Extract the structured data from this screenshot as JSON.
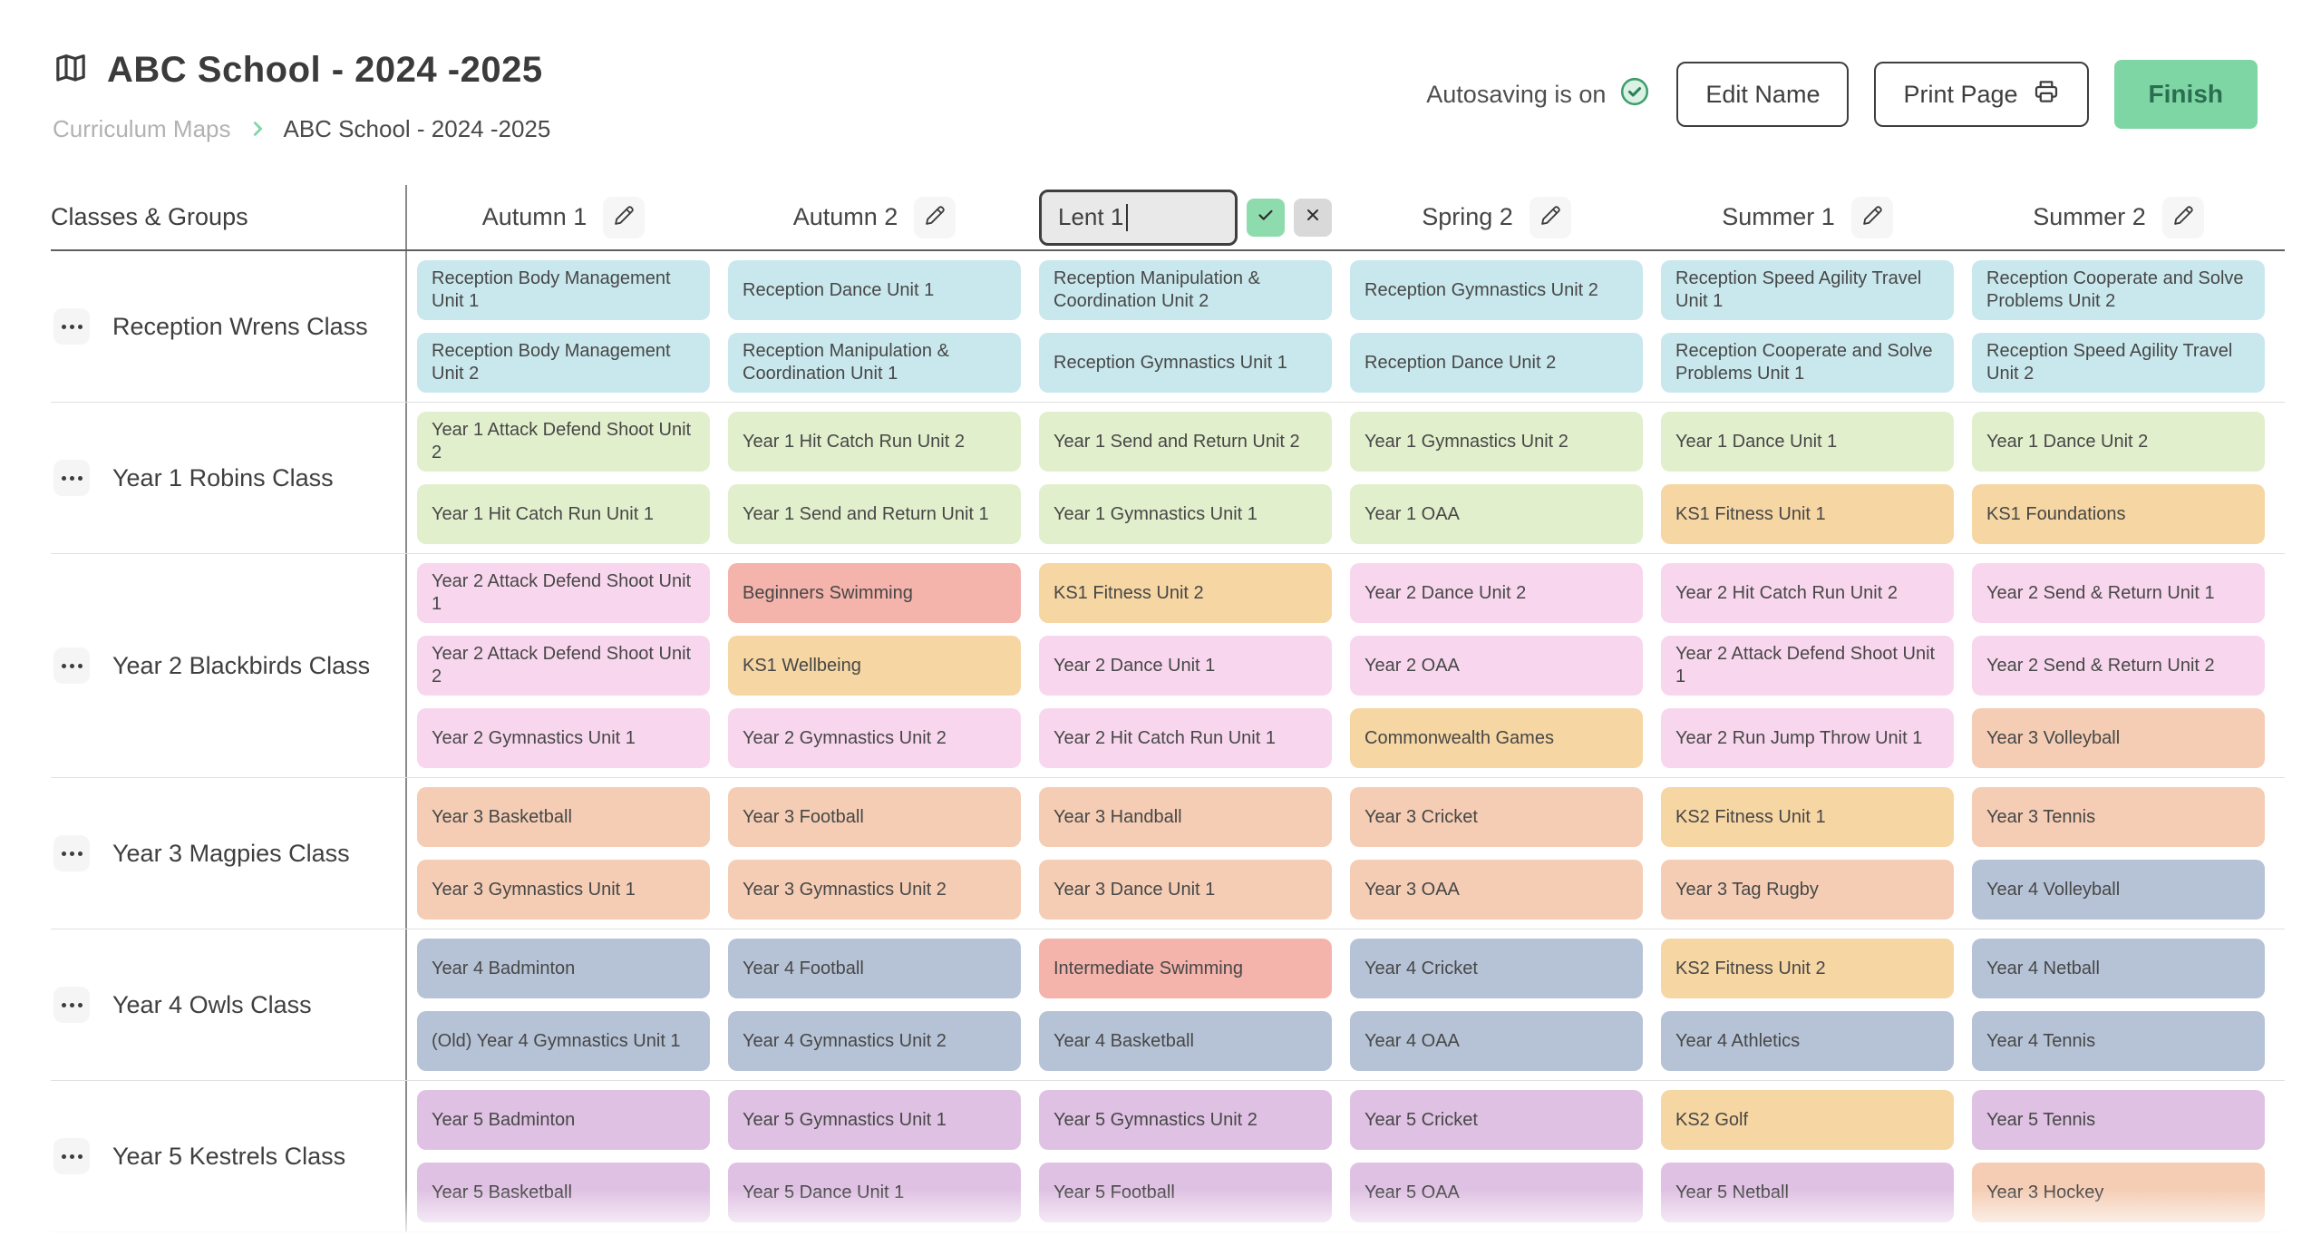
{
  "header": {
    "title": "ABC School - 2024 -2025",
    "breadcrumb": {
      "parent": "Curriculum Maps",
      "current": "ABC School - 2024 -2025"
    },
    "autosave_label": "Autosaving is on",
    "buttons": {
      "edit_name": "Edit Name",
      "print_page": "Print Page",
      "finish": "Finish"
    }
  },
  "colors": {
    "accent_green": "#7fd6a5",
    "finish_text": "#2a6e4f",
    "autosave_check": "#3f9d6d",
    "confirm_btn": "#8edcae",
    "cancel_btn": "#d9d9d9"
  },
  "palette": {
    "cyan": "#c9e8ed",
    "green": "#e2efcc",
    "pink": "#f8d7ee",
    "peach": "#f4cdb4",
    "steel": "#b6c3d6",
    "lilac": "#dfc1e3",
    "orange": "#f6d6a3",
    "salmon": "#f4b3ab"
  },
  "table": {
    "classes_header": "Classes & Groups",
    "edit_input_value": "Lent 1",
    "columns": [
      {
        "label": "Autumn 1",
        "editing": false
      },
      {
        "label": "Autumn 2",
        "editing": false
      },
      {
        "label": "Lent 1",
        "editing": true
      },
      {
        "label": "Spring 2",
        "editing": false
      },
      {
        "label": "Summer 1",
        "editing": false
      },
      {
        "label": "Summer 2",
        "editing": false
      }
    ],
    "rows": [
      {
        "class_name": "Reception Wrens Class",
        "color": "cyan",
        "cells": [
          [
            {
              "t": "Reception Body Management Unit 1"
            },
            {
              "t": "Reception Body Management Unit 2"
            }
          ],
          [
            {
              "t": "Reception Dance Unit 1"
            },
            {
              "t": "Reception Manipulation & Coordination Unit 1"
            }
          ],
          [
            {
              "t": "Reception Manipulation & Coordination Unit 2"
            },
            {
              "t": "Reception Gymnastics Unit 1"
            }
          ],
          [
            {
              "t": "Reception Gymnastics Unit 2"
            },
            {
              "t": "Reception Dance Unit 2"
            }
          ],
          [
            {
              "t": "Reception Speed Agility Travel Unit 1"
            },
            {
              "t": "Reception Cooperate and Solve Problems Unit 1"
            }
          ],
          [
            {
              "t": "Reception Cooperate and Solve Problems Unit 2"
            },
            {
              "t": "Reception Speed Agility Travel Unit 2"
            }
          ]
        ]
      },
      {
        "class_name": "Year 1 Robins Class",
        "color": "green",
        "cells": [
          [
            {
              "t": "Year 1 Attack Defend Shoot Unit 2"
            },
            {
              "t": "Year 1 Hit Catch Run Unit 1"
            }
          ],
          [
            {
              "t": "Year 1 Hit Catch Run Unit 2"
            },
            {
              "t": "Year 1 Send and Return Unit 1"
            }
          ],
          [
            {
              "t": "Year 1 Send and Return Unit 2"
            },
            {
              "t": "Year 1 Gymnastics Unit 1"
            }
          ],
          [
            {
              "t": "Year 1 Gymnastics Unit 2"
            },
            {
              "t": "Year 1 OAA"
            }
          ],
          [
            {
              "t": "Year 1 Dance Unit 1"
            },
            {
              "t": "KS1 Fitness Unit 1",
              "c": "orange"
            }
          ],
          [
            {
              "t": "Year 1 Dance Unit 2"
            },
            {
              "t": "KS1 Foundations",
              "c": "orange"
            }
          ]
        ]
      },
      {
        "class_name": "Year 2 Blackbirds Class",
        "color": "pink",
        "cells": [
          [
            {
              "t": "Year 2 Attack Defend Shoot Unit 1"
            },
            {
              "t": "Year 2 Attack Defend Shoot Unit 2"
            },
            {
              "t": "Year 2 Gymnastics Unit 1"
            }
          ],
          [
            {
              "t": "Beginners Swimming",
              "c": "salmon"
            },
            {
              "t": "KS1 Wellbeing",
              "c": "orange"
            },
            {
              "t": "Year 2 Gymnastics Unit 2"
            }
          ],
          [
            {
              "t": "KS1 Fitness Unit 2",
              "c": "orange"
            },
            {
              "t": "Year 2 Dance Unit 1"
            },
            {
              "t": "Year 2 Hit Catch Run Unit 1"
            }
          ],
          [
            {
              "t": "Year 2 Dance Unit 2"
            },
            {
              "t": "Year 2 OAA"
            },
            {
              "t": "Commonwealth Games",
              "c": "orange"
            }
          ],
          [
            {
              "t": "Year 2 Hit Catch Run Unit 2"
            },
            {
              "t": "Year 2 Attack Defend Shoot Unit 1"
            },
            {
              "t": "Year 2 Run Jump Throw Unit 1"
            }
          ],
          [
            {
              "t": "Year 2 Send & Return Unit 1"
            },
            {
              "t": "Year 2 Send & Return Unit 2"
            },
            {
              "t": "Year 3 Volleyball",
              "c": "peach"
            }
          ]
        ]
      },
      {
        "class_name": "Year 3 Magpies Class",
        "color": "peach",
        "cells": [
          [
            {
              "t": "Year 3 Basketball"
            },
            {
              "t": "Year 3 Gymnastics Unit 1"
            }
          ],
          [
            {
              "t": "Year 3 Football"
            },
            {
              "t": "Year 3 Gymnastics Unit 2"
            }
          ],
          [
            {
              "t": "Year 3 Handball"
            },
            {
              "t": "Year 3 Dance Unit 1"
            }
          ],
          [
            {
              "t": "Year 3 Cricket"
            },
            {
              "t": "Year 3 OAA"
            }
          ],
          [
            {
              "t": "KS2 Fitness Unit 1",
              "c": "orange"
            },
            {
              "t": "Year 3 Tag Rugby"
            }
          ],
          [
            {
              "t": "Year 3 Tennis"
            },
            {
              "t": "Year 4 Volleyball",
              "c": "steel"
            }
          ]
        ]
      },
      {
        "class_name": "Year 4 Owls Class",
        "color": "steel",
        "cells": [
          [
            {
              "t": "Year 4 Badminton"
            },
            {
              "t": "(Old) Year 4 Gymnastics Unit 1"
            }
          ],
          [
            {
              "t": "Year 4 Football"
            },
            {
              "t": "Year 4 Gymnastics Unit 2"
            }
          ],
          [
            {
              "t": "Intermediate Swimming",
              "c": "salmon"
            },
            {
              "t": "Year 4 Basketball"
            }
          ],
          [
            {
              "t": "Year 4 Cricket"
            },
            {
              "t": "Year 4 OAA"
            }
          ],
          [
            {
              "t": "KS2 Fitness Unit 2",
              "c": "orange"
            },
            {
              "t": "Year 4 Athletics"
            }
          ],
          [
            {
              "t": "Year 4 Netball"
            },
            {
              "t": "Year 4 Tennis"
            }
          ]
        ]
      },
      {
        "class_name": "Year 5 Kestrels Class",
        "color": "lilac",
        "cells": [
          [
            {
              "t": "Year 5 Badminton"
            },
            {
              "t": "Year 5 Basketball"
            }
          ],
          [
            {
              "t": "Year 5 Gymnastics Unit 1"
            },
            {
              "t": "Year 5 Dance Unit 1"
            }
          ],
          [
            {
              "t": "Year 5 Gymnastics Unit 2"
            },
            {
              "t": "Year 5 Football"
            }
          ],
          [
            {
              "t": "Year 5 Cricket"
            },
            {
              "t": "Year 5 OAA"
            }
          ],
          [
            {
              "t": "KS2 Golf",
              "c": "orange"
            },
            {
              "t": "Year 5 Netball"
            }
          ],
          [
            {
              "t": "Year 5 Tennis"
            },
            {
              "t": "Year 3 Hockey",
              "c": "peach"
            }
          ]
        ]
      }
    ]
  }
}
